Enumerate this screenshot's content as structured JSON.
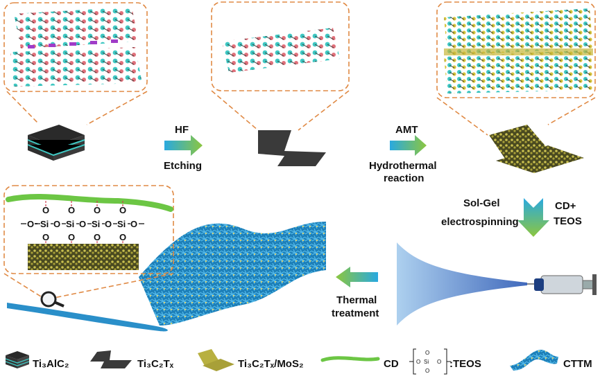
{
  "steps": {
    "hf": {
      "top": "HF",
      "bottom": "Etching"
    },
    "amt": {
      "top": "AMT",
      "bottom_line1": "Hydrothermal",
      "bottom_line2": "reaction"
    },
    "solgel": {
      "left_line1": "Sol-Gel",
      "left_line2": "electrospinning",
      "right_line1": "CD+",
      "right_line2": "TEOS"
    },
    "thermal": {
      "line1": "Thermal",
      "line2": "treatment"
    }
  },
  "bonding_inset": {
    "oxygen": "O",
    "silicon": "Si",
    "chain_units": 4
  },
  "legend": [
    {
      "label": "Ti₃AlC₂",
      "icon": "layered-block-icon"
    },
    {
      "label": "Ti₃C₂Tₓ",
      "icon": "dark-sheet-icon"
    },
    {
      "label": "Ti₃C₂Tₓ/MoS₂",
      "icon": "yellow-sheet-icon"
    },
    {
      "label": "CD",
      "icon": "green-fiber-icon"
    },
    {
      "label": ":TEOS",
      "icon": "teos-structure-icon"
    },
    {
      "label": "CTTM",
      "icon": "fiber-mat-icon"
    }
  ],
  "colors": {
    "inset_border": "#e08a45",
    "arrow_start": "#29a9e0",
    "arrow_end": "#8cc63f",
    "mxene_dark": "#3a3a3a",
    "layer_cyan": "#3fc7c2",
    "mos2_yellow": "#b8b040",
    "cd_green": "#6cc644",
    "fiber_blue": "#2a8fc9"
  }
}
